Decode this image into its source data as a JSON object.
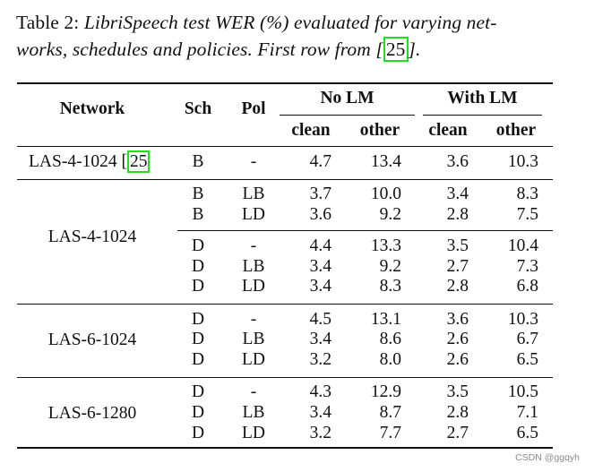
{
  "caption": {
    "prefix": "Table 2: ",
    "line1_italic": "LibriSpeech test WER (%) evaluated for varying net-",
    "line2_italic_start": "works, schedules and policies. First row from [",
    "citation": "25",
    "line2_italic_end": "]."
  },
  "table": {
    "headers": {
      "network": "Network",
      "schedule": "Sch",
      "policy": "Pol",
      "no_lm": "No LM",
      "with_lm": "With LM",
      "clean": "clean",
      "other": "other"
    },
    "first_row": {
      "network": "LAS-4-1024 [",
      "citation": "25",
      "schedule": "B",
      "policy": "-",
      "values": [
        "4.7",
        "13.4",
        "3.6",
        "10.3"
      ]
    },
    "groups": [
      {
        "network": "LAS-4-1024",
        "rows": [
          {
            "sch": "B",
            "pol": "LB",
            "values": [
              "3.7",
              "10.0",
              "3.4",
              "8.3"
            ]
          },
          {
            "sch": "B",
            "pol": "LD",
            "values": [
              "3.6",
              "9.2",
              "2.8",
              "7.5"
            ]
          },
          {
            "sch": "D",
            "pol": "-",
            "values": [
              "4.4",
              "13.3",
              "3.5",
              "10.4"
            ]
          },
          {
            "sch": "D",
            "pol": "LB",
            "values": [
              "3.4",
              "9.2",
              "2.7",
              "7.3"
            ]
          },
          {
            "sch": "D",
            "pol": "LD",
            "values": [
              "3.4",
              "8.3",
              "2.8",
              "6.8"
            ]
          }
        ]
      },
      {
        "network": "LAS-6-1024",
        "rows": [
          {
            "sch": "D",
            "pol": "-",
            "values": [
              "4.5",
              "13.1",
              "3.6",
              "10.3"
            ]
          },
          {
            "sch": "D",
            "pol": "LB",
            "values": [
              "3.4",
              "8.6",
              "2.6",
              "6.7"
            ]
          },
          {
            "sch": "D",
            "pol": "LD",
            "values": [
              "3.2",
              "8.0",
              "2.6",
              "6.5"
            ]
          }
        ]
      },
      {
        "network": "LAS-6-1280",
        "rows": [
          {
            "sch": "D",
            "pol": "-",
            "values": [
              "4.3",
              "12.9",
              "3.5",
              "10.5"
            ]
          },
          {
            "sch": "D",
            "pol": "LB",
            "values": [
              "3.4",
              "8.7",
              "2.8",
              "7.1"
            ]
          },
          {
            "sch": "D",
            "pol": "LD",
            "values": [
              "3.2",
              "7.7",
              "2.7",
              "6.5"
            ]
          }
        ]
      }
    ]
  },
  "watermark": "CSDN @ggqyh"
}
